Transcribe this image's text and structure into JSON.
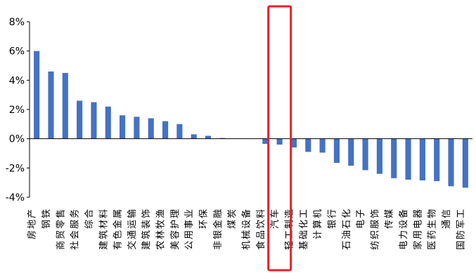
{
  "chart_data": {
    "type": "bar",
    "ylim": [
      -4,
      8
    ],
    "y_ticks": [
      "8%",
      "6%",
      "4%",
      "2%",
      "0%",
      "-2%",
      "-4%"
    ],
    "y_tick_values": [
      8,
      6,
      4,
      2,
      0,
      -2,
      -4
    ],
    "grid": false,
    "bar_color": "#4472c4",
    "highlight_color": "#e8212b",
    "highlight_category": "汽车",
    "categories": [
      "房地产",
      "钢铁",
      "商贸零售",
      "社会服务",
      "综合",
      "建筑材料",
      "有色金属",
      "交通运输",
      "建筑装饰",
      "农林牧渔",
      "美容护理",
      "公用事业",
      "环保",
      "非银金融",
      "煤炭",
      "机械设备",
      "食品饮料",
      "汽车",
      "轻工制造",
      "基础化工",
      "计算机",
      "银行",
      "石油石化",
      "电子",
      "纺织服饰",
      "传媒",
      "电力设备",
      "家用电器",
      "医药生物",
      "通信",
      "国防军工"
    ],
    "values": [
      6.0,
      4.6,
      4.5,
      2.6,
      2.5,
      2.2,
      1.6,
      1.5,
      1.4,
      1.2,
      1.0,
      0.3,
      0.2,
      0.05,
      0.0,
      0.0,
      -0.35,
      -0.4,
      -0.6,
      -0.9,
      -0.95,
      -1.65,
      -1.85,
      -2.15,
      -2.4,
      -2.7,
      -2.8,
      -2.85,
      -2.9,
      -3.25,
      -3.35
    ]
  }
}
